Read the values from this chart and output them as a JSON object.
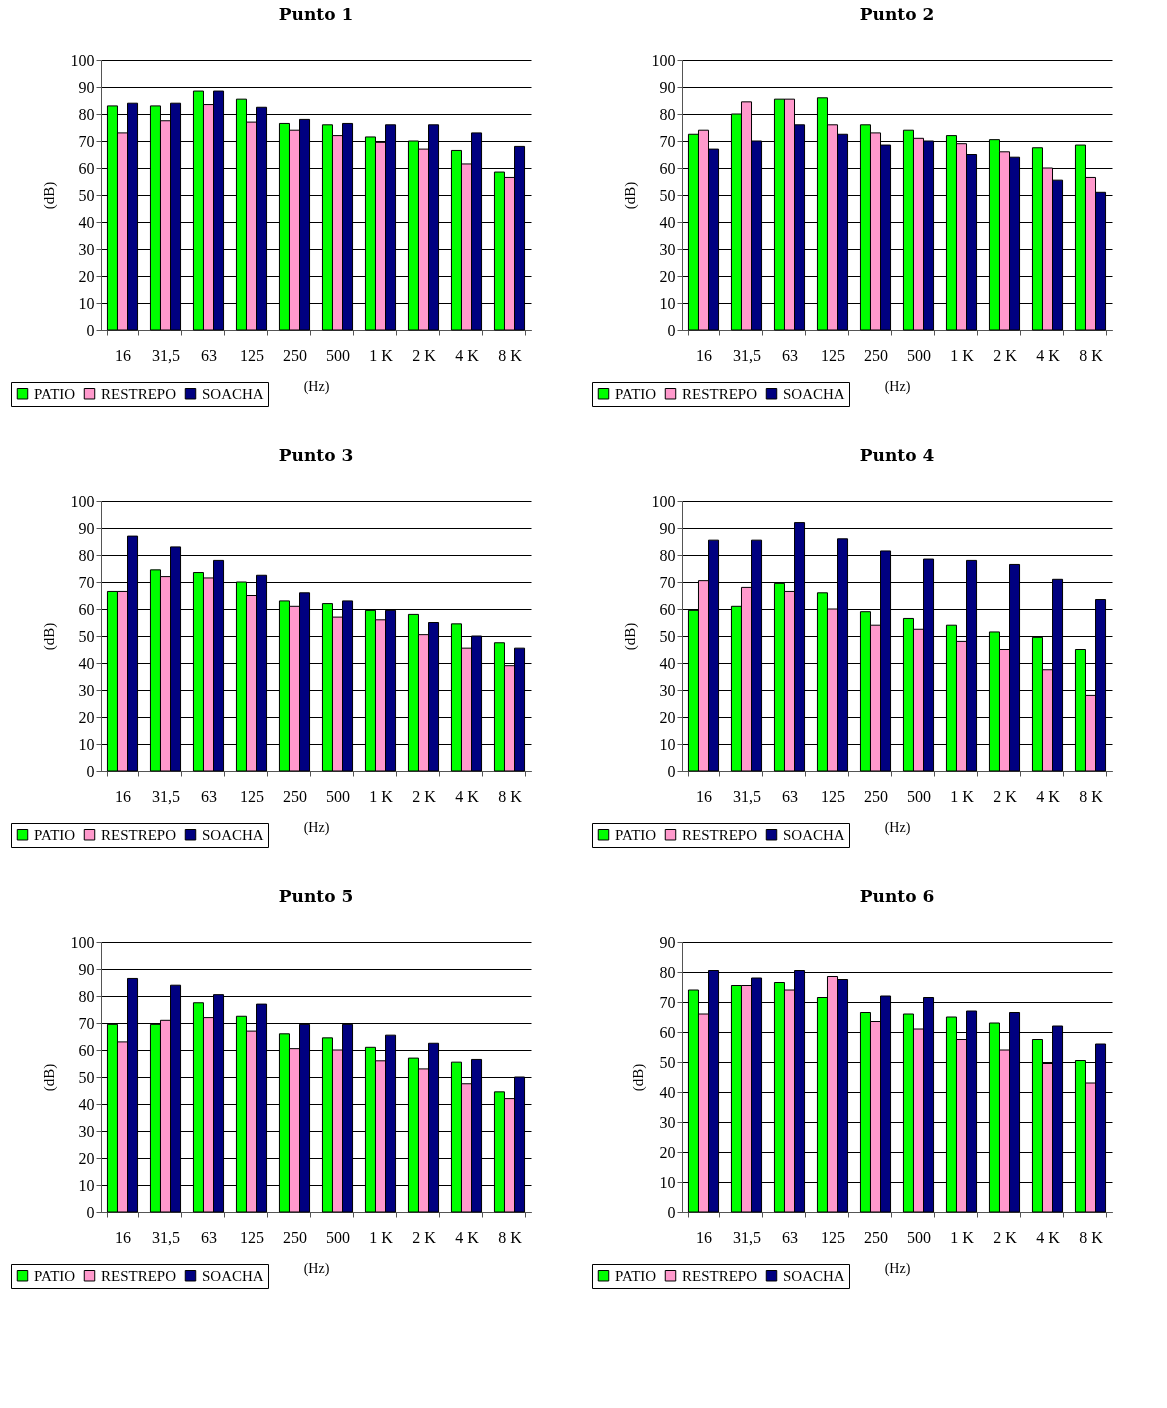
{
  "chart_data": [
    {
      "type": "bar",
      "title": "Punto 1",
      "xlabel": "(Hz)",
      "ylabel": "(dB)",
      "categories": [
        "16",
        "31,5",
        "63",
        "125",
        "250",
        "500",
        "1 K",
        "2 K",
        "4 K",
        "8 K"
      ],
      "series": [
        {
          "name": "PATIO",
          "color": "#00ff00",
          "values": [
            83,
            83,
            88.5,
            85.5,
            76.5,
            76,
            71.5,
            70,
            66.5,
            58.5
          ]
        },
        {
          "name": "RESTREPO",
          "color": "#ff99cc",
          "values": [
            73,
            77.5,
            83.5,
            77,
            74,
            72,
            69.5,
            67,
            61.5,
            56.5
          ]
        },
        {
          "name": "SOACHA",
          "color": "#000080",
          "values": [
            84,
            84,
            88.5,
            82.5,
            78,
            76.5,
            76,
            76,
            73,
            68
          ]
        }
      ],
      "ylim": [
        0,
        100
      ],
      "yticks": [
        0,
        10,
        20,
        30,
        40,
        50,
        60,
        70,
        80,
        90,
        100
      ],
      "grid": "y",
      "legend": "bottom left"
    },
    {
      "type": "bar",
      "title": "Punto 2",
      "xlabel": "(Hz)",
      "ylabel": "(dB)",
      "categories": [
        "16",
        "31,5",
        "63",
        "125",
        "250",
        "500",
        "1 K",
        "2 K",
        "4 K",
        "8 K"
      ],
      "series": [
        {
          "name": "PATIO",
          "color": "#00ff00",
          "values": [
            72.5,
            80,
            85.5,
            86,
            76,
            74,
            72,
            70.5,
            67.5,
            68.5
          ]
        },
        {
          "name": "RESTREPO",
          "color": "#ff99cc",
          "values": [
            74,
            84.5,
            85.5,
            76,
            73,
            71,
            69,
            66,
            60,
            56.5
          ]
        },
        {
          "name": "SOACHA",
          "color": "#000080",
          "values": [
            67,
            70,
            76,
            72.5,
            68.5,
            70,
            65,
            64,
            55.5,
            51
          ]
        }
      ],
      "ylim": [
        0,
        100
      ],
      "yticks": [
        0,
        10,
        20,
        30,
        40,
        50,
        60,
        70,
        80,
        90,
        100
      ],
      "grid": "y",
      "legend": "bottom left"
    },
    {
      "type": "bar",
      "title": "Punto 3",
      "xlabel": "(Hz)",
      "ylabel": "(dB)",
      "categories": [
        "16",
        "31,5",
        "63",
        "125",
        "250",
        "500",
        "1 K",
        "2 K",
        "4 K",
        "8 K"
      ],
      "series": [
        {
          "name": "PATIO",
          "color": "#00ff00",
          "values": [
            66.5,
            74.5,
            73.5,
            70,
            63,
            62,
            59.5,
            58,
            54.5,
            47.5
          ]
        },
        {
          "name": "RESTREPO",
          "color": "#ff99cc",
          "values": [
            66.5,
            72,
            71.5,
            65,
            61,
            57,
            56,
            50.5,
            45.5,
            39
          ]
        },
        {
          "name": "SOACHA",
          "color": "#000080",
          "values": [
            87,
            83,
            78,
            72.5,
            66,
            63,
            59.5,
            55,
            50,
            45.5
          ]
        }
      ],
      "ylim": [
        0,
        100
      ],
      "yticks": [
        0,
        10,
        20,
        30,
        40,
        50,
        60,
        70,
        80,
        90,
        100
      ],
      "grid": "y",
      "legend": "bottom left"
    },
    {
      "type": "bar",
      "title": "Punto 4",
      "xlabel": "(Hz)",
      "ylabel": "(dB)",
      "categories": [
        "16",
        "31,5",
        "63",
        "125",
        "250",
        "500",
        "1 K",
        "2 K",
        "4 K",
        "8 K"
      ],
      "series": [
        {
          "name": "PATIO",
          "color": "#00ff00",
          "values": [
            59.5,
            61,
            69.5,
            66,
            59,
            56.5,
            54,
            51.5,
            49.5,
            45
          ]
        },
        {
          "name": "RESTREPO",
          "color": "#ff99cc",
          "values": [
            70.5,
            68,
            66.5,
            60,
            54,
            52.5,
            48,
            45,
            37.5,
            28
          ]
        },
        {
          "name": "SOACHA",
          "color": "#000080",
          "values": [
            85.5,
            85.5,
            92,
            86,
            81.5,
            78.5,
            78,
            76.5,
            71,
            63.5
          ]
        }
      ],
      "ylim": [
        0,
        100
      ],
      "yticks": [
        0,
        10,
        20,
        30,
        40,
        50,
        60,
        70,
        80,
        90,
        100
      ],
      "grid": "y",
      "legend": "bottom left"
    },
    {
      "type": "bar",
      "title": "Punto 5",
      "xlabel": "(Hz)",
      "ylabel": "(dB)",
      "categories": [
        "16",
        "31,5",
        "63",
        "125",
        "250",
        "500",
        "1 K",
        "2 K",
        "4 K",
        "8 K"
      ],
      "series": [
        {
          "name": "PATIO",
          "color": "#00ff00",
          "values": [
            69.5,
            69.5,
            77.5,
            72.5,
            66,
            64.5,
            61,
            57,
            55.5,
            44.5
          ]
        },
        {
          "name": "RESTREPO",
          "color": "#ff99cc",
          "values": [
            63,
            71,
            72,
            67,
            60.5,
            60,
            56,
            53,
            47.5,
            42
          ]
        },
        {
          "name": "SOACHA",
          "color": "#000080",
          "values": [
            86.5,
            84,
            80.5,
            77,
            69.5,
            69.5,
            65.5,
            62.5,
            56.5,
            50
          ]
        }
      ],
      "ylim": [
        0,
        100
      ],
      "yticks": [
        0,
        10,
        20,
        30,
        40,
        50,
        60,
        70,
        80,
        90,
        100
      ],
      "grid": "y",
      "legend": "bottom left"
    },
    {
      "type": "bar",
      "title": "Punto 6",
      "xlabel": "(Hz)",
      "ylabel": "(dB)",
      "categories": [
        "16",
        "31,5",
        "63",
        "125",
        "250",
        "500",
        "1 K",
        "2 K",
        "4 K",
        "8 K"
      ],
      "series": [
        {
          "name": "PATIO",
          "color": "#00ff00",
          "values": [
            74,
            75.5,
            76.5,
            71.5,
            66.5,
            66,
            65,
            63,
            57.5,
            50.5
          ]
        },
        {
          "name": "RESTREPO",
          "color": "#ff99cc",
          "values": [
            66,
            75.5,
            74,
            78.5,
            63.5,
            61,
            57.5,
            54,
            49.5,
            43
          ]
        },
        {
          "name": "SOACHA",
          "color": "#000080",
          "values": [
            80.5,
            78,
            80.5,
            77.5,
            72,
            71.5,
            67,
            66.5,
            62,
            56
          ]
        }
      ],
      "ylim": [
        0,
        90
      ],
      "yticks": [
        0,
        10,
        20,
        30,
        40,
        50,
        60,
        70,
        80,
        90
      ],
      "grid": "y",
      "legend": "bottom left"
    }
  ]
}
